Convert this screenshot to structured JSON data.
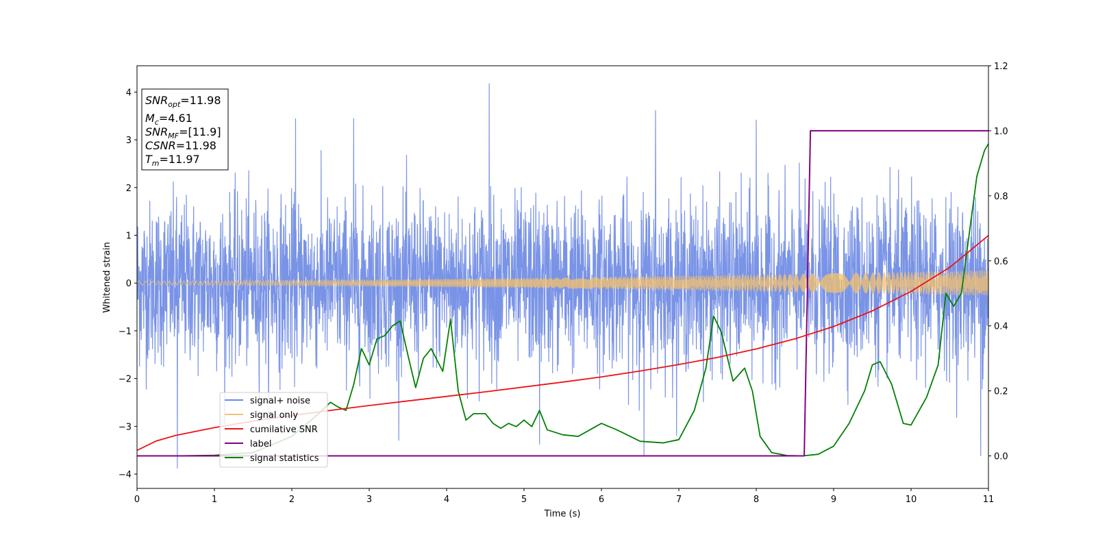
{
  "chart_data": {
    "type": "line",
    "xlabel": "Time (s)",
    "ylabel": "Whitened strain",
    "xlim": [
      0,
      11
    ],
    "ylim": [
      -4.3,
      4.55
    ],
    "y2lim": [
      -0.1,
      1.2
    ],
    "x_ticks": [
      "0",
      "1",
      "2",
      "3",
      "4",
      "5",
      "6",
      "7",
      "8",
      "9",
      "10",
      "11"
    ],
    "y_ticks": [
      "−4",
      "−3",
      "−2",
      "−1",
      "0",
      "1",
      "2",
      "3",
      "4"
    ],
    "y2_ticks": [
      "0.0",
      "0.2",
      "0.4",
      "0.6",
      "0.8",
      "1.0",
      "1.2"
    ],
    "grid": false,
    "legend_position": "lower-left",
    "colors": {
      "signal_noise": "#6a87e3",
      "signal_only": "#f5c26b",
      "cumulative_snr": "#ee1111",
      "label": "#800080",
      "signal_statistics": "#008000"
    },
    "series": [
      {
        "name": "signal+ noise",
        "axis": "left",
        "kind": "noise",
        "envelope_std": 0.85,
        "peaks": [
          {
            "x": 0.52,
            "y": -3.88
          },
          {
            "x": 2.05,
            "y": 3.45
          },
          {
            "x": 2.8,
            "y": 3.45
          },
          {
            "x": 4.55,
            "y": 4.18
          },
          {
            "x": 5.2,
            "y": -3.38
          },
          {
            "x": 6.55,
            "y": -3.62
          },
          {
            "x": 6.7,
            "y": 3.62
          },
          {
            "x": 8.0,
            "y": 3.42
          },
          {
            "x": 10.9,
            "y": -3.62
          }
        ]
      },
      {
        "name": "signal only",
        "axis": "left",
        "kind": "chirp",
        "amplitude_start": 0.04,
        "amplitude_end": 0.27
      },
      {
        "name": "cumilative SNR",
        "axis": "right",
        "x": [
          0,
          0.25,
          0.5,
          1,
          1.5,
          2,
          2.5,
          3,
          3.5,
          4,
          4.5,
          5,
          5.5,
          6,
          6.5,
          7,
          7.5,
          8,
          8.5,
          9,
          9.5,
          10,
          10.5,
          11
        ],
        "y": [
          0.017,
          0.046,
          0.063,
          0.087,
          0.107,
          0.124,
          0.14,
          0.155,
          0.169,
          0.183,
          0.197,
          0.212,
          0.227,
          0.243,
          0.261,
          0.281,
          0.303,
          0.329,
          0.36,
          0.398,
          0.446,
          0.506,
          0.58,
          0.678
        ]
      },
      {
        "name": "label",
        "axis": "right",
        "x": [
          0,
          8.62,
          8.7,
          11
        ],
        "y": [
          0,
          0,
          1,
          1
        ]
      },
      {
        "name": "signal statistics",
        "axis": "right",
        "x": [
          0,
          0.5,
          1,
          1.5,
          2,
          2.3,
          2.5,
          2.6,
          2.7,
          2.8,
          2.9,
          3.0,
          3.1,
          3.2,
          3.3,
          3.4,
          3.5,
          3.6,
          3.7,
          3.8,
          3.95,
          4.05,
          4.15,
          4.25,
          4.35,
          4.5,
          4.6,
          4.7,
          4.8,
          4.9,
          5.0,
          5.1,
          5.2,
          5.3,
          5.5,
          5.7,
          6.0,
          6.2,
          6.5,
          6.8,
          7.0,
          7.2,
          7.35,
          7.45,
          7.55,
          7.7,
          7.85,
          7.95,
          8.05,
          8.2,
          8.4,
          8.6,
          8.8,
          9.0,
          9.2,
          9.4,
          9.5,
          9.6,
          9.75,
          9.9,
          10.0,
          10.2,
          10.35,
          10.45,
          10.55,
          10.65,
          10.75,
          10.85,
          10.95,
          11.0
        ],
        "y": [
          0.0,
          0.0,
          0.002,
          0.01,
          0.06,
          0.12,
          0.165,
          0.15,
          0.14,
          0.22,
          0.33,
          0.28,
          0.36,
          0.37,
          0.4,
          0.415,
          0.31,
          0.21,
          0.3,
          0.33,
          0.26,
          0.42,
          0.2,
          0.11,
          0.13,
          0.13,
          0.1,
          0.085,
          0.1,
          0.09,
          0.11,
          0.09,
          0.14,
          0.08,
          0.065,
          0.06,
          0.1,
          0.08,
          0.045,
          0.04,
          0.05,
          0.14,
          0.27,
          0.43,
          0.38,
          0.23,
          0.27,
          0.2,
          0.06,
          0.01,
          0.001,
          0.0,
          0.005,
          0.03,
          0.1,
          0.2,
          0.28,
          0.29,
          0.22,
          0.1,
          0.095,
          0.18,
          0.28,
          0.5,
          0.46,
          0.5,
          0.68,
          0.86,
          0.94,
          0.96
        ]
      }
    ],
    "annotations": {
      "snr_opt_label": "SNR",
      "snr_opt_sub": "opt",
      "snr_opt_value": "=11.98",
      "mc_label": "M",
      "mc_sub": "c",
      "mc_value": "=4.61",
      "snr_mf_label": "SNR",
      "snr_mf_sub": "MF",
      "snr_mf_value": "=[11.9]",
      "csnr_label": "CSNR",
      "csnr_value": "=11.98",
      "tm_label": "T",
      "tm_sub": "m",
      "tm_value": "=11.97"
    }
  }
}
